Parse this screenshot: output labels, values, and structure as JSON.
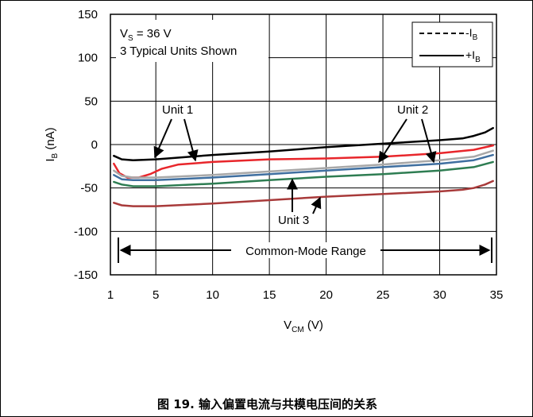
{
  "caption": "图 19. 输入偏置电流与共模电压间的关系",
  "chart_data": {
    "type": "line",
    "xlabel": {
      "main": "V",
      "sub": "CM",
      "unit": " (V)"
    },
    "ylabel": {
      "main": "I",
      "sub": "B",
      "unit": " (nA)"
    },
    "xlim": [
      1,
      35
    ],
    "ylim": [
      -150,
      150
    ],
    "xticks": [
      1,
      5,
      10,
      15,
      20,
      25,
      30,
      35
    ],
    "yticks": [
      150,
      100,
      50,
      0,
      -50,
      -100,
      -150
    ],
    "grid": true,
    "legend_placement": "top-right",
    "legend": [
      {
        "main": "-I",
        "sub": "B",
        "style": "dashed"
      },
      {
        "main": "+I",
        "sub": "B",
        "style": "solid"
      }
    ],
    "info_box": {
      "line1_main": "V",
      "line1_sub": "S",
      "line1_rest": " = 36 V",
      "line2": "3 Typical Units Shown"
    },
    "range_label": "Common-Mode Range",
    "range": [
      1.3,
      34.7
    ],
    "annotations": {
      "unit1": "Unit 1",
      "unit2": "Unit 2",
      "unit3": "Unit 3"
    },
    "series": [
      {
        "color": "#000000",
        "values": [
          [
            1.3,
            -13
          ],
          [
            2,
            -17
          ],
          [
            3,
            -18
          ],
          [
            5,
            -17
          ],
          [
            10,
            -12
          ],
          [
            15,
            -8
          ],
          [
            20,
            -3
          ],
          [
            25,
            1
          ],
          [
            30,
            5
          ],
          [
            32,
            7
          ],
          [
            33,
            10
          ],
          [
            34,
            14
          ],
          [
            34.7,
            19
          ]
        ]
      },
      {
        "color": "#e8262b",
        "values": [
          [
            1.3,
            -22
          ],
          [
            1.8,
            -33
          ],
          [
            2.5,
            -38
          ],
          [
            3.5,
            -38
          ],
          [
            4.5,
            -34
          ],
          [
            5.5,
            -28
          ],
          [
            7,
            -23
          ],
          [
            10,
            -20
          ],
          [
            15,
            -17
          ],
          [
            20,
            -16
          ],
          [
            25,
            -14
          ],
          [
            30,
            -10
          ],
          [
            33,
            -6
          ],
          [
            34.7,
            -1
          ]
        ]
      },
      {
        "color": "#a8a8a8",
        "values": [
          [
            1.3,
            -30
          ],
          [
            2,
            -36
          ],
          [
            3,
            -38
          ],
          [
            5,
            -38
          ],
          [
            10,
            -35
          ],
          [
            15,
            -31
          ],
          [
            20,
            -27
          ],
          [
            25,
            -23
          ],
          [
            30,
            -18
          ],
          [
            33,
            -14
          ],
          [
            34.7,
            -7
          ]
        ]
      },
      {
        "color": "#3f6fa0",
        "values": [
          [
            1.3,
            -35
          ],
          [
            2,
            -40
          ],
          [
            3,
            -41
          ],
          [
            5,
            -41
          ],
          [
            10,
            -38
          ],
          [
            15,
            -34
          ],
          [
            20,
            -30
          ],
          [
            25,
            -26
          ],
          [
            30,
            -22
          ],
          [
            33,
            -18
          ],
          [
            34.7,
            -12
          ]
        ]
      },
      {
        "color": "#2e7d52",
        "values": [
          [
            1.3,
            -43
          ],
          [
            2,
            -46
          ],
          [
            3,
            -48
          ],
          [
            5,
            -48
          ],
          [
            10,
            -45
          ],
          [
            15,
            -41
          ],
          [
            20,
            -37
          ],
          [
            25,
            -34
          ],
          [
            30,
            -30
          ],
          [
            33,
            -26
          ],
          [
            34.7,
            -20
          ]
        ]
      },
      {
        "color": "#a83a3a",
        "values": [
          [
            1.3,
            -67
          ],
          [
            2,
            -70
          ],
          [
            3,
            -71
          ],
          [
            5,
            -71
          ],
          [
            10,
            -68
          ],
          [
            15,
            -64
          ],
          [
            20,
            -60
          ],
          [
            25,
            -57
          ],
          [
            30,
            -54
          ],
          [
            32,
            -52
          ],
          [
            33,
            -50
          ],
          [
            34,
            -46
          ],
          [
            34.7,
            -42
          ]
        ]
      }
    ]
  }
}
